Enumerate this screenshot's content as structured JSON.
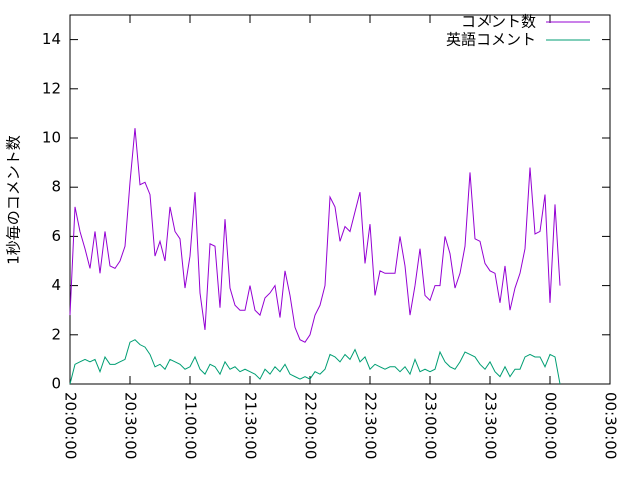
{
  "chart_data": {
    "type": "line",
    "ylabel": "1秒毎のコメント数",
    "x": [
      0,
      2.5,
      5,
      7.5,
      10,
      12.5,
      15,
      17.5,
      20,
      22.5,
      25,
      27.5,
      30,
      32.5,
      35,
      37.5,
      40,
      42.5,
      45,
      47.5,
      50,
      52.5,
      55,
      57.5,
      60,
      62.5,
      65,
      67.5,
      70,
      72.5,
      75,
      77.5,
      80,
      82.5,
      85,
      87.5,
      90,
      92.5,
      95,
      97.5,
      100,
      102.5,
      105,
      107.5,
      110,
      112.5,
      115,
      117.5,
      120,
      122.5,
      125,
      127.5,
      130,
      132.5,
      135,
      137.5,
      140,
      142.5,
      145,
      147.5,
      150,
      152.5,
      155,
      157.5,
      160,
      162.5,
      165,
      167.5,
      170,
      172.5,
      175,
      177.5,
      180,
      182.5,
      185,
      187.5,
      190,
      192.5,
      195,
      197.5,
      200,
      202.5,
      205,
      207.5,
      210,
      212.5,
      215,
      217.5,
      220,
      222.5,
      225,
      227.5,
      230,
      232.5,
      235,
      237.5,
      240,
      242.5,
      245
    ],
    "series": [
      {
        "name": "コメント数",
        "color": "#9400d3",
        "values": [
          2.8,
          7.2,
          6.2,
          5.5,
          4.7,
          6.2,
          4.5,
          6.2,
          4.8,
          4.7,
          5.0,
          5.6,
          8.2,
          10.4,
          8.1,
          8.2,
          7.7,
          5.2,
          5.8,
          5.0,
          7.2,
          6.2,
          5.9,
          3.9,
          5.2,
          7.8,
          3.7,
          2.2,
          5.7,
          5.6,
          3.1,
          6.7,
          3.9,
          3.2,
          3.0,
          3.0,
          4.0,
          3.0,
          2.8,
          3.5,
          3.7,
          4.0,
          2.7,
          4.6,
          3.6,
          2.3,
          1.8,
          1.7,
          2.0,
          2.8,
          3.2,
          4.0,
          7.6,
          7.2,
          5.8,
          6.4,
          6.2,
          7.0,
          7.8,
          4.9,
          6.5,
          3.6,
          4.6,
          4.5,
          4.5,
          4.5,
          6.0,
          4.8,
          2.8,
          4.0,
          5.5,
          3.6,
          3.4,
          4.0,
          4.0,
          6.0,
          5.3,
          3.9,
          4.5,
          5.6,
          8.6,
          5.9,
          5.8,
          4.9,
          4.6,
          4.5,
          3.3,
          4.8,
          3.0,
          3.9,
          4.5,
          5.5,
          8.8,
          6.1,
          6.2,
          7.7,
          3.3,
          7.3,
          4.0
        ]
      },
      {
        "name": "英語コメント",
        "color": "#009e73",
        "values": [
          0,
          0.8,
          0.9,
          1.0,
          0.9,
          1.0,
          0.5,
          1.1,
          0.8,
          0.8,
          0.9,
          1.0,
          1.7,
          1.8,
          1.6,
          1.5,
          1.2,
          0.7,
          0.8,
          0.6,
          1.0,
          0.9,
          0.8,
          0.6,
          0.7,
          1.1,
          0.6,
          0.4,
          0.8,
          0.7,
          0.4,
          0.9,
          0.6,
          0.7,
          0.5,
          0.6,
          0.5,
          0.4,
          0.2,
          0.6,
          0.4,
          0.7,
          0.5,
          0.8,
          0.4,
          0.3,
          0.2,
          0.3,
          0.2,
          0.5,
          0.4,
          0.6,
          1.2,
          1.1,
          0.9,
          1.2,
          1.0,
          1.4,
          0.9,
          1.1,
          0.6,
          0.8,
          0.7,
          0.6,
          0.7,
          0.7,
          0.5,
          0.7,
          0.4,
          1.0,
          0.5,
          0.6,
          0.5,
          0.6,
          1.3,
          0.9,
          0.7,
          0.6,
          0.9,
          1.3,
          1.2,
          1.1,
          0.8,
          0.6,
          0.9,
          0.5,
          0.3,
          0.7,
          0.3,
          0.6,
          0.6,
          1.1,
          1.2,
          1.1,
          1.1,
          0.7,
          1.2,
          1.1,
          0
        ]
      }
    ],
    "xlim": [
      0,
      270
    ],
    "xticks": [
      {
        "value": 0,
        "label": "20:00:00"
      },
      {
        "value": 30,
        "label": "20:30:00"
      },
      {
        "value": 60,
        "label": "21:00:00"
      },
      {
        "value": 90,
        "label": "21:30:00"
      },
      {
        "value": 120,
        "label": "22:00:00"
      },
      {
        "value": 150,
        "label": "22:30:00"
      },
      {
        "value": 180,
        "label": "23:00:00"
      },
      {
        "value": 210,
        "label": "23:30:00"
      },
      {
        "value": 240,
        "label": "00:00:00"
      },
      {
        "value": 270,
        "label": "00:30:00"
      }
    ],
    "ylim": [
      0,
      15
    ],
    "yticks": [
      0,
      2,
      4,
      6,
      8,
      10,
      12,
      14
    ],
    "legend": "top-right"
  }
}
